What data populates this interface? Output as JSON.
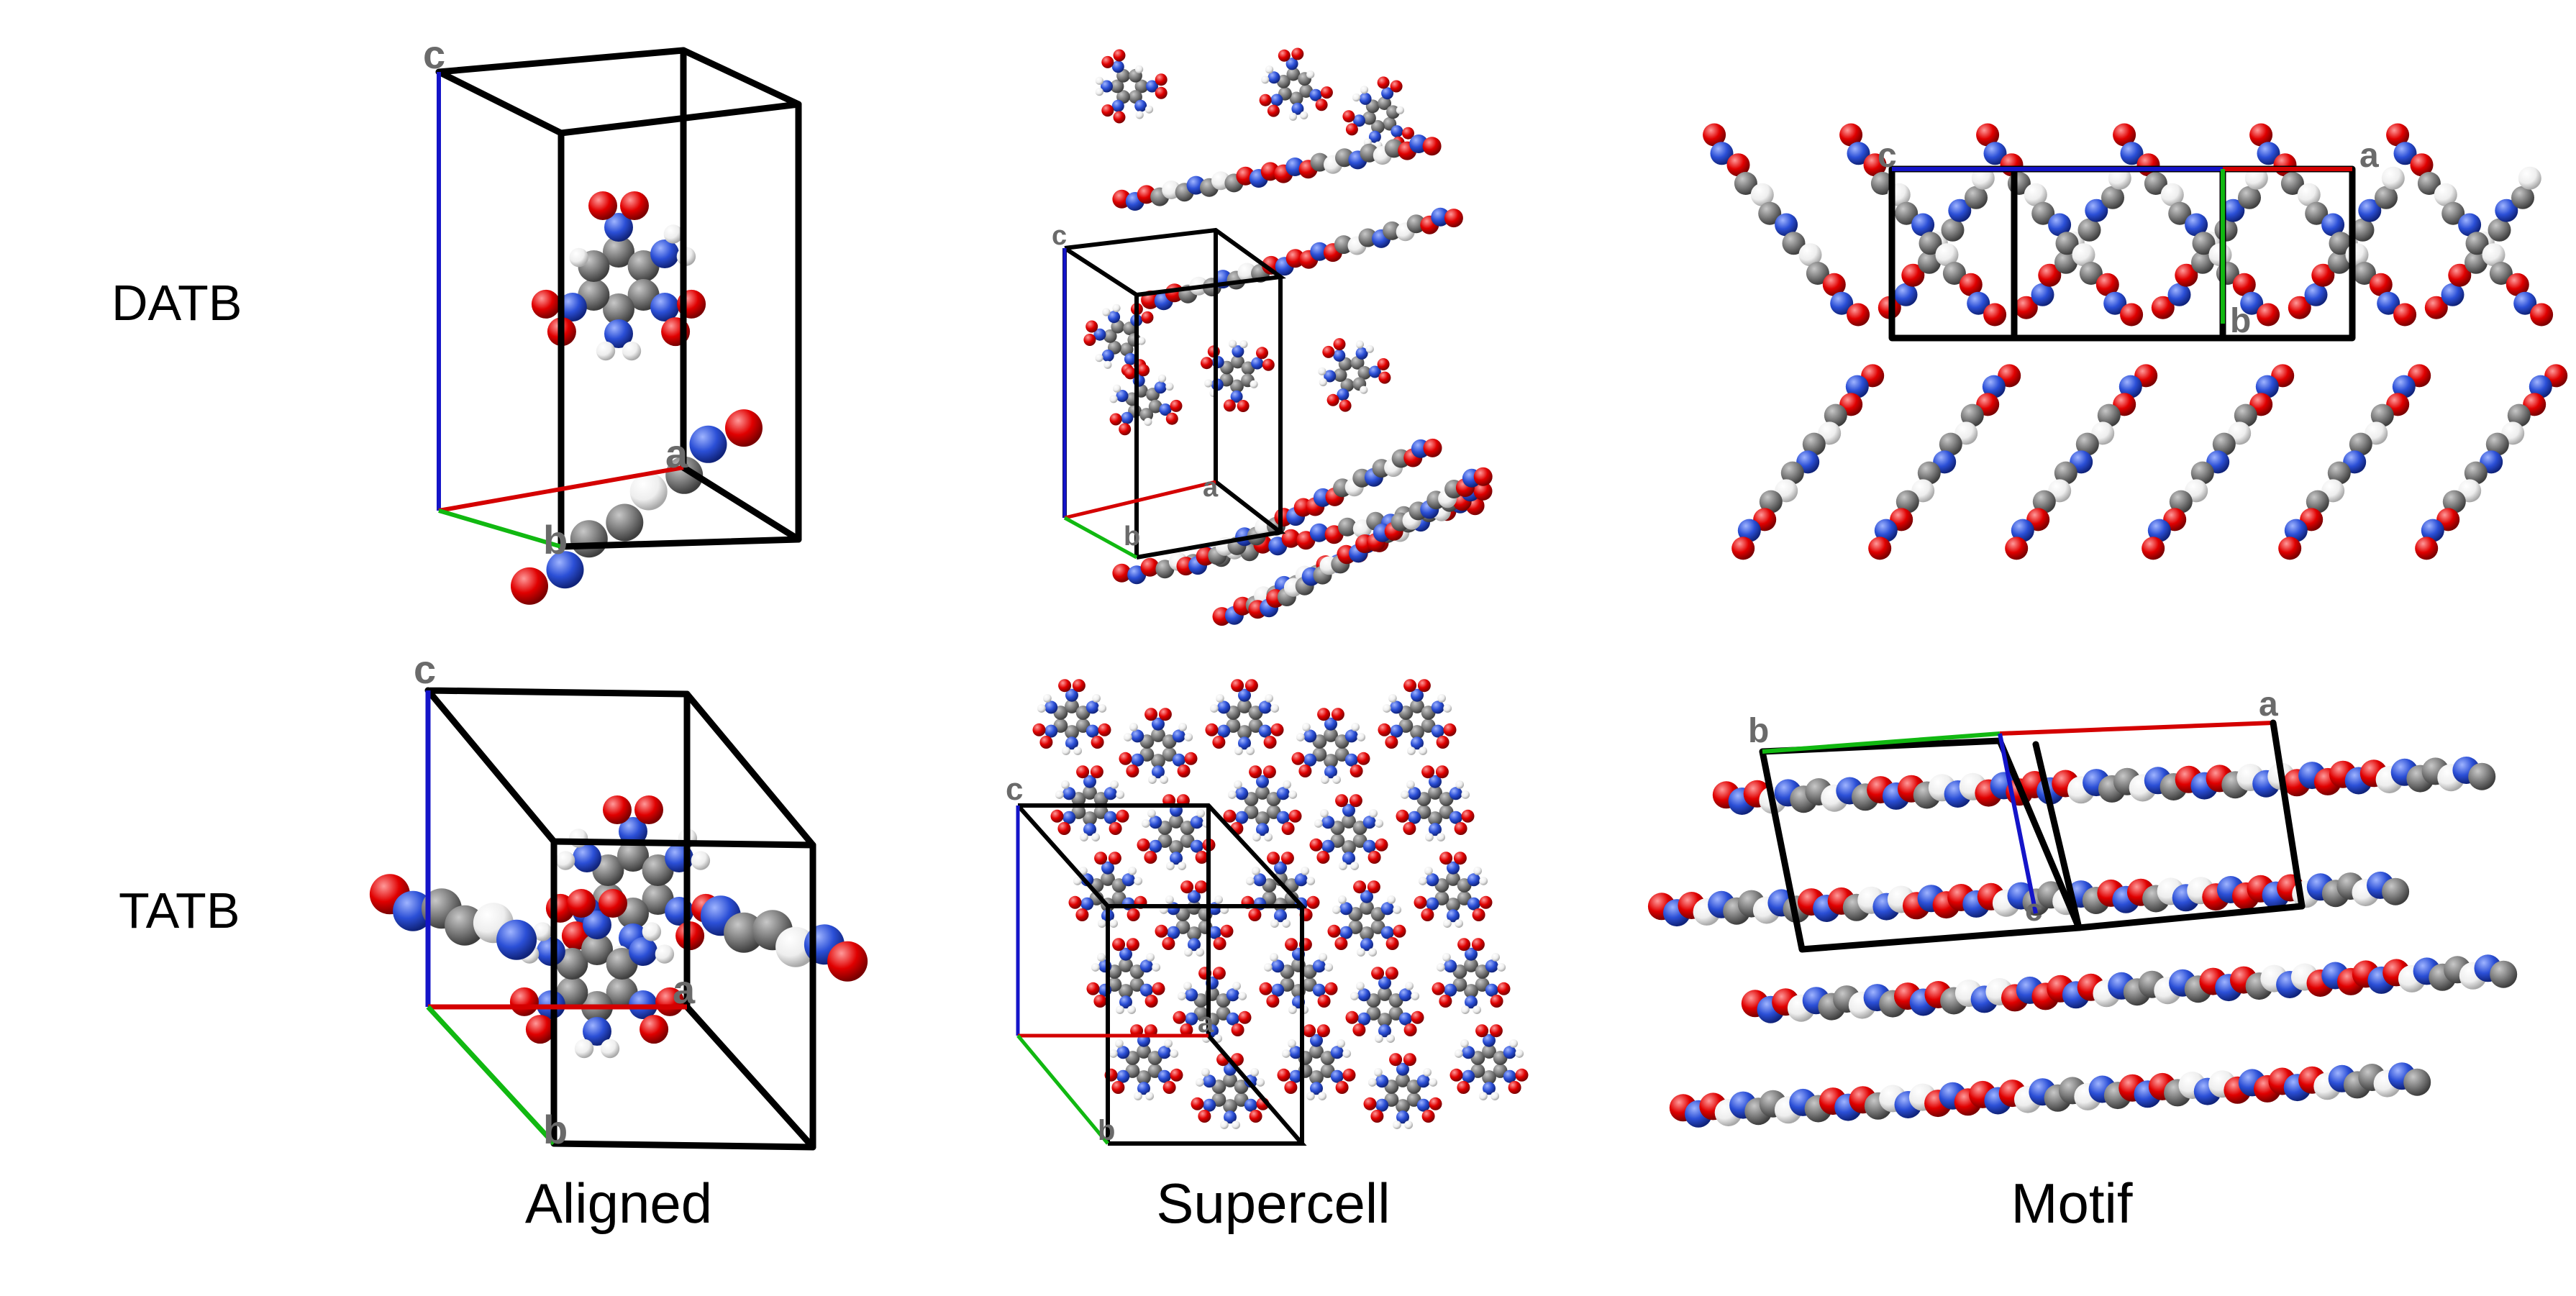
{
  "rows": [
    {
      "id": "datb",
      "label": "DATB"
    },
    {
      "id": "tatb",
      "label": "TATB"
    }
  ],
  "columns": [
    {
      "id": "aligned",
      "label": "Aligned"
    },
    {
      "id": "supercell",
      "label": "Supercell"
    },
    {
      "id": "motif",
      "label": "Motif"
    }
  ],
  "axis_labels": {
    "a": "a",
    "b": "b",
    "c": "c"
  },
  "colors": {
    "carbon": "#7d7d7d",
    "nitrogen": "#2b4fd6",
    "oxygen": "#e00000",
    "hydrogen": "#eeeeee",
    "axis_a": "#d40000",
    "axis_b": "#11b811",
    "axis_c": "#1414c8",
    "cell_edge": "#000000"
  }
}
